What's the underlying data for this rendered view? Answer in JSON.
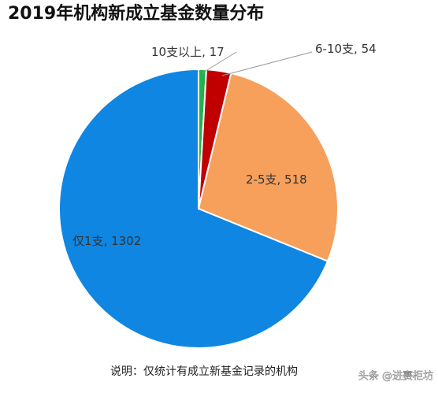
{
  "chart_data": {
    "type": "pie",
    "title": "2019年机构新成立基金数量分布",
    "categories": [
      "10支以上",
      "6-10支",
      "2-5支",
      "仅1支"
    ],
    "values": [
      17,
      54,
      518,
      1302
    ],
    "colors": [
      "#22b14c",
      "#c00000",
      "#f6a05c",
      "#0f86e2"
    ],
    "data_label_separator": ", ",
    "note": "说明：仅统计有成立新基金记录的机构",
    "watermark": "头条 @进赛柜坊"
  }
}
